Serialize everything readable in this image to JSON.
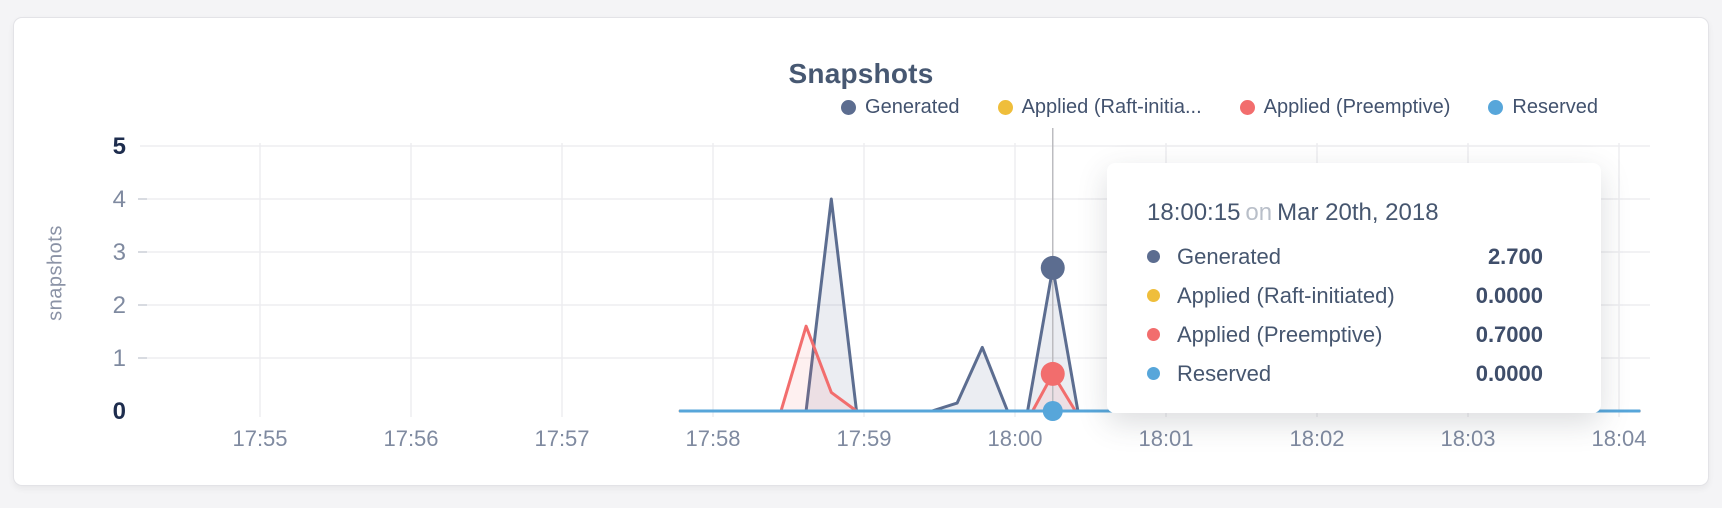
{
  "page": {
    "background_color": "#f4f4f6"
  },
  "chart": {
    "title": "Snapshots",
    "y_axis_label": "snapshots"
  },
  "legend": {
    "items": [
      {
        "series": "Generated",
        "label": "Generated",
        "color": "#5c6d90"
      },
      {
        "series": "Applied (Raft-initiated)",
        "label": "Applied (Raft-initia...",
        "color": "#efbe3b"
      },
      {
        "series": "Applied (Preemptive)",
        "label": "Applied (Preemptive)",
        "color": "#f26d6d"
      },
      {
        "series": "Reserved",
        "label": "Reserved",
        "color": "#57a6da"
      }
    ]
  },
  "tooltip": {
    "time": "18:00:15",
    "separator": "on",
    "date": "Mar 20th, 2018",
    "rows": [
      {
        "series": "Generated",
        "value": "2.700"
      },
      {
        "series": "Applied (Raft-initiated)",
        "value": "0.0000"
      },
      {
        "series": "Applied (Preemptive)",
        "value": "0.7000"
      },
      {
        "series": "Reserved",
        "value": "0.0000"
      }
    ]
  },
  "chart_data": {
    "type": "area",
    "title": "Snapshots",
    "xlabel": "",
    "ylabel": "snapshots",
    "ylim": [
      0,
      5
    ],
    "y_ticks": [
      0,
      1,
      2,
      3,
      4,
      5
    ],
    "x_ticks": [
      "17:55",
      "17:56",
      "17:57",
      "17:58",
      "17:59",
      "18:00",
      "18:01",
      "18:02",
      "18:03",
      "18:04"
    ],
    "grid": true,
    "legend_position": "top-right",
    "hover": {
      "time": "18:00:15",
      "date": "Mar 20th, 2018",
      "markers": [
        {
          "series": "Generated",
          "value": 2.7,
          "radius": 12
        },
        {
          "series": "Applied (Preemptive)",
          "value": 0.7,
          "radius": 12
        },
        {
          "series": "Reserved",
          "value": 0,
          "radius": 10
        }
      ]
    },
    "series": [
      {
        "name": "Generated",
        "color": "#5c6d90",
        "fill": "rgba(92,109,144,0.12)",
        "points": [
          [
            "17:57:47",
            0
          ],
          [
            "17:58:37",
            0
          ],
          [
            "17:58:47",
            4
          ],
          [
            "17:58:57",
            0
          ],
          [
            "17:59:27",
            0
          ],
          [
            "17:59:37",
            0.15
          ],
          [
            "17:59:47",
            1.2
          ],
          [
            "17:59:57",
            0
          ],
          [
            "18:00:05",
            0
          ],
          [
            "18:00:15",
            2.7
          ],
          [
            "18:00:25",
            0
          ],
          [
            "18:04:08",
            0
          ]
        ]
      },
      {
        "name": "Applied (Raft-initiated)",
        "color": "#efbe3b",
        "fill": "none",
        "points": [
          [
            "17:57:47",
            0
          ],
          [
            "18:04:08",
            0
          ]
        ]
      },
      {
        "name": "Applied (Preemptive)",
        "color": "#f26d6d",
        "fill": "rgba(242,109,109,0.10)",
        "points": [
          [
            "17:57:47",
            0
          ],
          [
            "17:58:27",
            0
          ],
          [
            "17:58:37",
            1.6
          ],
          [
            "17:58:47",
            0.35
          ],
          [
            "17:58:57",
            0
          ],
          [
            "18:00:07",
            0
          ],
          [
            "18:00:15",
            0.7
          ],
          [
            "18:00:24",
            0
          ],
          [
            "18:04:08",
            0
          ]
        ]
      },
      {
        "name": "Reserved",
        "color": "#57a6da",
        "fill": "none",
        "points": [
          [
            "17:57:47",
            0
          ],
          [
            "18:04:08",
            0
          ]
        ]
      }
    ]
  }
}
